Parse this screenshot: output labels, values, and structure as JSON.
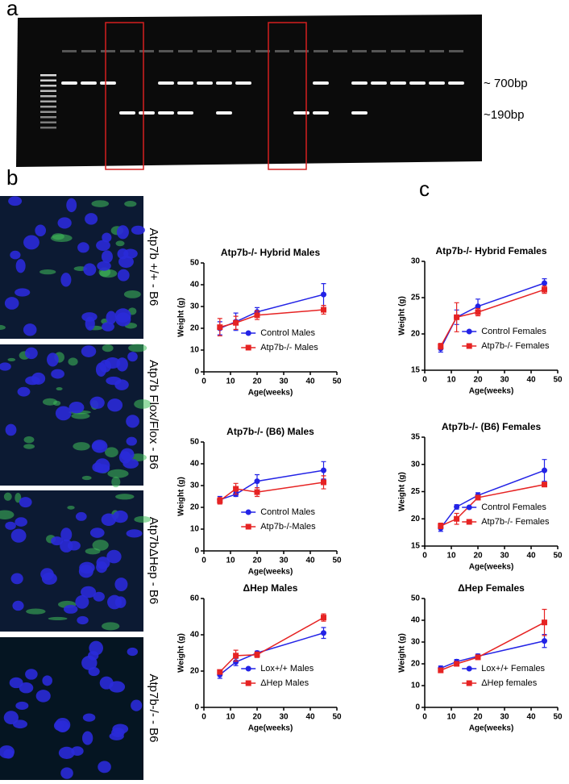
{
  "panels": {
    "a": "a",
    "b": "b",
    "c": "c"
  },
  "gel": {
    "band_high": "~ 700bp",
    "band_low": "~190bp"
  },
  "images": {
    "labels": [
      "Atp7b +/+ - B6",
      "Atp7b Flox/Flox - B6",
      "Atp7bΔHep - B6",
      "Atp7b-/- - B6"
    ]
  },
  "chart_data": [
    {
      "type": "line",
      "title": "Atp7b-/- Hybrid Males",
      "xlabel": "Age(weeks)",
      "ylabel": "Weight (g)",
      "x": [
        6,
        12,
        20,
        45
      ],
      "xlim": [
        0,
        50
      ],
      "xticks": [
        0,
        10,
        20,
        30,
        40,
        50
      ],
      "ylim": [
        0,
        50
      ],
      "yticks": [
        0,
        10,
        20,
        30,
        40,
        50
      ],
      "legend": "lower right",
      "series": [
        {
          "name": "Control Males",
          "color": "#2323e6",
          "marker": "circle",
          "values": [
            20,
            23,
            27.5,
            35.5
          ],
          "errors": [
            3,
            4,
            2,
            5
          ]
        },
        {
          "name": "Atp7b-/- Males",
          "color": "#e62323",
          "marker": "square",
          "values": [
            20.5,
            22.5,
            26,
            28.5
          ],
          "errors": [
            4,
            3,
            2,
            2
          ]
        }
      ]
    },
    {
      "type": "line",
      "title": "Atp7b-/- Hybrid Females",
      "xlabel": "Age(weeks)",
      "ylabel": "Weight (g)",
      "x": [
        6,
        12,
        20,
        45
      ],
      "xlim": [
        0,
        50
      ],
      "xticks": [
        0,
        10,
        20,
        30,
        40,
        50
      ],
      "ylim": [
        15,
        30
      ],
      "yticks": [
        15,
        20,
        25,
        30
      ],
      "legend": "lower right",
      "series": [
        {
          "name": "Control Females",
          "color": "#2323e6",
          "marker": "circle",
          "values": [
            18,
            22.3,
            23.8,
            27
          ],
          "errors": [
            0.5,
            1,
            1,
            0.6
          ]
        },
        {
          "name": "Atp7b-/- Females",
          "color": "#e62323",
          "marker": "square",
          "values": [
            18.3,
            22.3,
            23,
            26.1
          ],
          "errors": [
            0.4,
            2,
            0.5,
            0.5
          ]
        }
      ]
    },
    {
      "type": "line",
      "title": "Atp7b-/- (B6) Males",
      "xlabel": "Age(weeks)",
      "ylabel": "Weight (g)",
      "x": [
        6,
        12,
        20,
        45
      ],
      "xlim": [
        0,
        50
      ],
      "xticks": [
        0,
        10,
        20,
        30,
        40,
        50
      ],
      "ylim": [
        0,
        50
      ],
      "yticks": [
        0,
        10,
        20,
        30,
        40,
        50
      ],
      "legend": "lower right",
      "series": [
        {
          "name": "Control Males",
          "color": "#2323e6",
          "marker": "circle",
          "values": [
            23.5,
            26,
            32,
            37
          ],
          "errors": [
            1.5,
            1,
            3,
            4
          ]
        },
        {
          "name": "Atp7b-/-Males",
          "color": "#e62323",
          "marker": "square",
          "values": [
            23,
            28.5,
            27,
            31.5
          ],
          "errors": [
            1.5,
            2.5,
            2,
            3
          ]
        }
      ]
    },
    {
      "type": "line",
      "title": "Atp7b-/- (B6) Females",
      "xlabel": "Age(weeks)",
      "ylabel": "Weight (g)",
      "x": [
        6,
        12,
        20,
        45
      ],
      "xlim": [
        0,
        50
      ],
      "xticks": [
        0,
        10,
        20,
        30,
        40,
        50
      ],
      "ylim": [
        15,
        35
      ],
      "yticks": [
        15,
        20,
        25,
        30,
        35
      ],
      "legend": "lower right",
      "series": [
        {
          "name": "Control Females",
          "color": "#2323e6",
          "marker": "circle",
          "values": [
            18.3,
            22.2,
            24.3,
            28.9
          ],
          "errors": [
            0.6,
            0.4,
            0.5,
            2
          ]
        },
        {
          "name": "Atp7b-/- Females",
          "color": "#e62323",
          "marker": "square",
          "values": [
            18.7,
            20,
            23.9,
            26.3
          ],
          "errors": [
            0.5,
            1,
            0.4,
            0.4
          ]
        }
      ]
    },
    {
      "type": "line",
      "title": "ΔHep Males",
      "xlabel": "Age(weeks)",
      "ylabel": "Weight (g)",
      "x": [
        6,
        12,
        20,
        45
      ],
      "xlim": [
        0,
        50
      ],
      "xticks": [
        0,
        10,
        20,
        30,
        40,
        50
      ],
      "ylim": [
        0,
        60
      ],
      "yticks": [
        0,
        20,
        40,
        60
      ],
      "legend": "lower right",
      "series": [
        {
          "name": "Lox+/+ Males",
          "color": "#2323e6",
          "marker": "circle",
          "values": [
            18,
            25,
            30,
            41
          ],
          "errors": [
            2,
            2,
            1,
            3
          ]
        },
        {
          "name": "ΔHep Males",
          "color": "#e62323",
          "marker": "square",
          "values": [
            19.5,
            28.5,
            29,
            49.5
          ],
          "errors": [
            1,
            3,
            1.5,
            2
          ]
        }
      ]
    },
    {
      "type": "line",
      "title": "ΔHep Females",
      "xlabel": "Age(weeks)",
      "ylabel": "Weight (g)",
      "x": [
        6,
        12,
        20,
        45
      ],
      "xlim": [
        0,
        50
      ],
      "xticks": [
        0,
        10,
        20,
        30,
        40,
        50
      ],
      "ylim": [
        0,
        50
      ],
      "yticks": [
        0,
        10,
        20,
        30,
        40,
        50
      ],
      "legend": "lower right",
      "series": [
        {
          "name": "Lox+/+ Females",
          "color": "#2323e6",
          "marker": "circle",
          "values": [
            18,
            21,
            23.5,
            30.5
          ],
          "errors": [
            1,
            1,
            1,
            3
          ]
        },
        {
          "name": "ΔHep females",
          "color": "#e62323",
          "marker": "square",
          "values": [
            17,
            20,
            23,
            39
          ],
          "errors": [
            1,
            1,
            1,
            6
          ]
        }
      ]
    }
  ]
}
